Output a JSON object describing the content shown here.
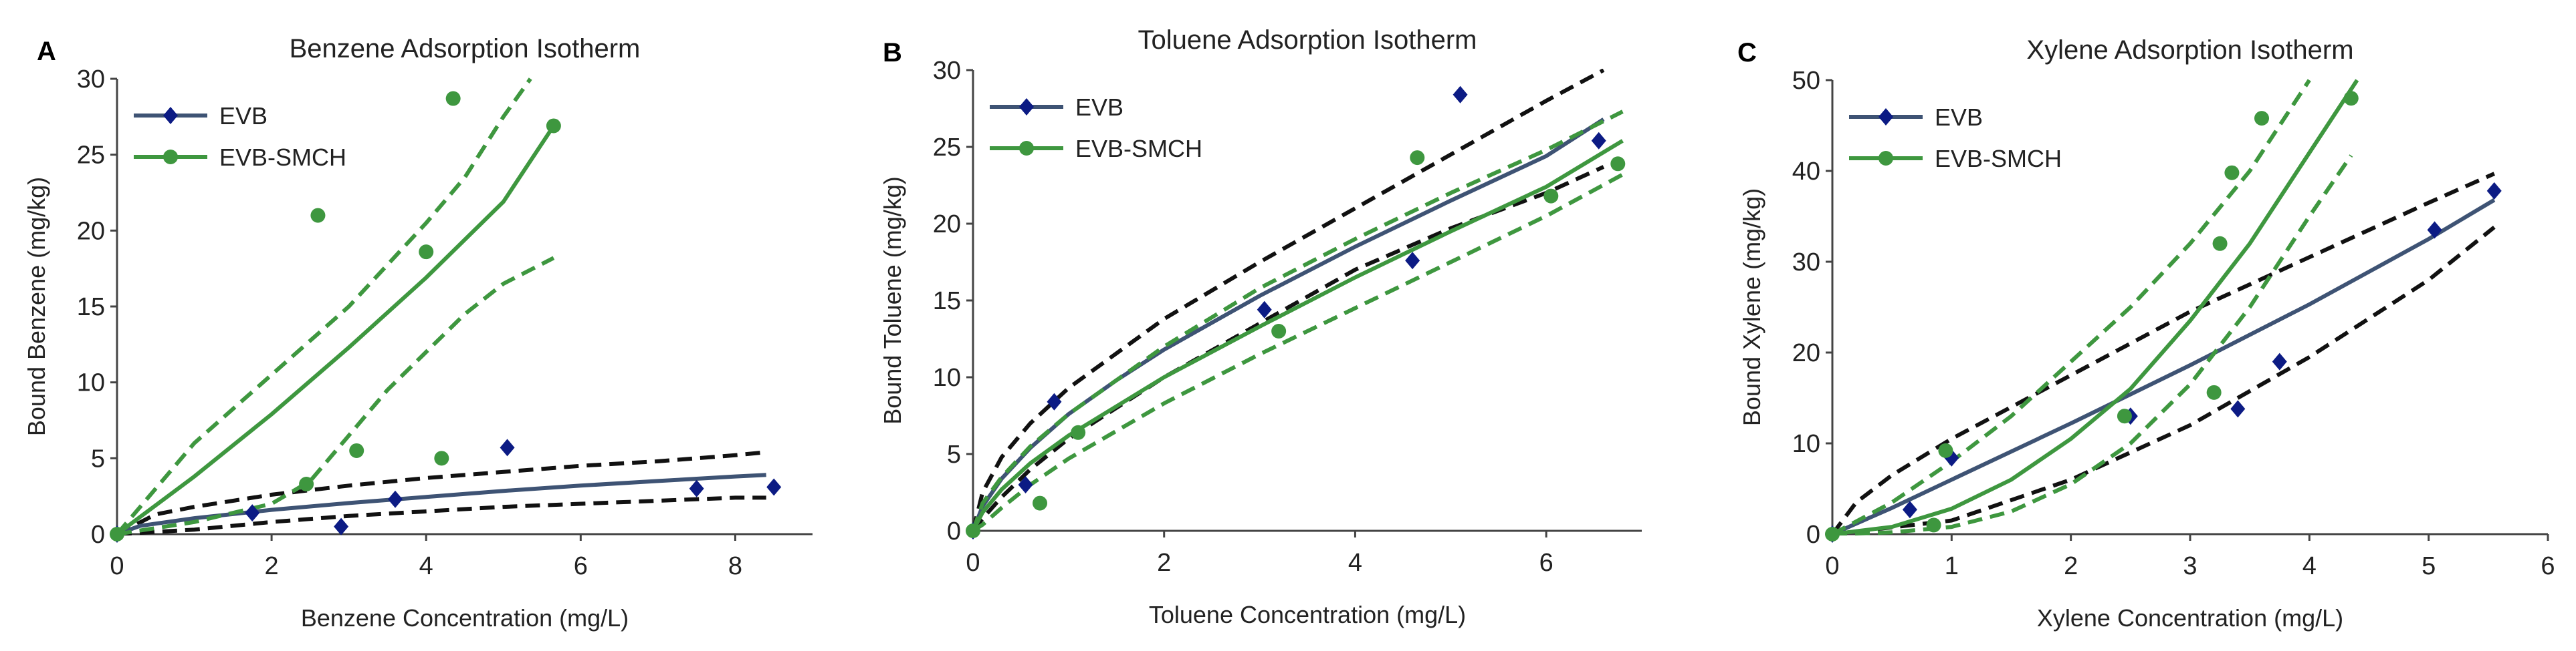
{
  "colors": {
    "evb_line": "#3e5374",
    "evb_marker": "#0c1b84",
    "smch": "#3e973f",
    "ci_black": "#111111"
  },
  "legend": {
    "evb": "EVB",
    "smch": "EVB-SMCH"
  },
  "chart_data": [
    {
      "type": "scatter",
      "panel_letter": "A",
      "title": "Benzene Adsorption Isotherm",
      "xlabel": "Benzene Concentration (mg/L)",
      "ylabel": "Bound Benzene (mg/kg)",
      "xlim": [
        0,
        9
      ],
      "ylim": [
        0,
        30
      ],
      "xticks": [
        0,
        2,
        4,
        6,
        8
      ],
      "yticks": [
        0,
        5,
        10,
        15,
        20,
        25,
        30
      ],
      "series": [
        {
          "name": "EVB",
          "points": [
            [
              0,
              0
            ],
            [
              1.75,
              1.4
            ],
            [
              2.9,
              0.5
            ],
            [
              3.6,
              2.3
            ],
            [
              5.05,
              5.7
            ],
            [
              7.5,
              3.0
            ],
            [
              8.5,
              3.1
            ]
          ],
          "fit": [
            [
              0,
              0
            ],
            [
              0.3,
              0.55
            ],
            [
              1,
              1.05
            ],
            [
              2,
              1.6
            ],
            [
              3,
              2.05
            ],
            [
              4,
              2.45
            ],
            [
              5,
              2.85
            ],
            [
              6,
              3.2
            ],
            [
              7,
              3.5
            ],
            [
              8,
              3.8
            ],
            [
              8.4,
              3.9
            ]
          ],
          "ci_upper": [
            [
              0,
              0
            ],
            [
              0.5,
              1.3
            ],
            [
              1,
              1.8
            ],
            [
              2,
              2.6
            ],
            [
              3,
              3.2
            ],
            [
              4,
              3.7
            ],
            [
              5,
              4.1
            ],
            [
              6,
              4.5
            ],
            [
              7,
              4.8
            ],
            [
              8,
              5.2
            ],
            [
              8.4,
              5.4
            ]
          ],
          "ci_lower": [
            [
              0,
              0
            ],
            [
              1,
              0.3
            ],
            [
              2,
              0.8
            ],
            [
              3,
              1.2
            ],
            [
              4,
              1.5
            ],
            [
              5,
              1.8
            ],
            [
              6,
              2.0
            ],
            [
              7,
              2.2
            ],
            [
              8,
              2.4
            ],
            [
              8.4,
              2.4
            ]
          ]
        },
        {
          "name": "EVB-SMCH",
          "points": [
            [
              0,
              0
            ],
            [
              2.45,
              3.3
            ],
            [
              2.6,
              21.0
            ],
            [
              3.1,
              5.5
            ],
            [
              4.0,
              18.6
            ],
            [
              4.2,
              5.0
            ],
            [
              4.35,
              28.7
            ],
            [
              5.65,
              26.9
            ]
          ],
          "fit": [
            [
              0,
              0
            ],
            [
              1,
              3.8
            ],
            [
              2,
              7.9
            ],
            [
              3,
              12.3
            ],
            [
              4,
              16.9
            ],
            [
              5,
              21.9
            ],
            [
              5.65,
              26.9
            ]
          ],
          "ci_upper": [
            [
              0,
              0
            ],
            [
              0.5,
              3.0
            ],
            [
              1,
              6.0
            ],
            [
              2,
              10.5
            ],
            [
              3,
              15.0
            ],
            [
              4,
              20.5
            ],
            [
              4.5,
              23.5
            ],
            [
              5,
              27.5
            ],
            [
              5.35,
              30.0
            ]
          ],
          "ci_lower": [
            [
              0,
              0
            ],
            [
              1,
              0.8
            ],
            [
              2,
              2.0
            ],
            [
              2.5,
              3.5
            ],
            [
              3,
              6.5
            ],
            [
              3.5,
              9.5
            ],
            [
              4,
              12.0
            ],
            [
              4.5,
              14.5
            ],
            [
              5,
              16.5
            ],
            [
              5.65,
              18.2
            ]
          ]
        }
      ]
    },
    {
      "type": "scatter",
      "panel_letter": "B",
      "title": "Toluene Adsorption Isotherm",
      "xlabel": "Toluene Concentration (mg/L)",
      "ylabel": "Bound Toluene (mg/kg)",
      "xlim": [
        0,
        7
      ],
      "ylim": [
        0,
        30
      ],
      "xticks": [
        0,
        2,
        4,
        6
      ],
      "yticks": [
        0,
        5,
        10,
        15,
        20,
        25,
        30
      ],
      "series": [
        {
          "name": "EVB",
          "points": [
            [
              0,
              0
            ],
            [
              0.55,
              3.0
            ],
            [
              0.85,
              8.4
            ],
            [
              3.05,
              14.4
            ],
            [
              4.6,
              17.6
            ],
            [
              5.1,
              28.4
            ],
            [
              6.55,
              25.4
            ]
          ],
          "fit": [
            [
              0,
              0
            ],
            [
              0.1,
              1.6
            ],
            [
              0.3,
              3.4
            ],
            [
              0.6,
              5.4
            ],
            [
              1,
              7.6
            ],
            [
              1.5,
              9.8
            ],
            [
              2,
              11.8
            ],
            [
              3,
              15.3
            ],
            [
              4,
              18.5
            ],
            [
              5,
              21.5
            ],
            [
              6,
              24.4
            ],
            [
              6.6,
              26.8
            ]
          ],
          "ci_upper": [
            [
              0,
              0
            ],
            [
              0.1,
              2.5
            ],
            [
              0.3,
              4.8
            ],
            [
              0.6,
              7.0
            ],
            [
              1,
              9.3
            ],
            [
              2,
              13.8
            ],
            [
              3,
              17.5
            ],
            [
              4,
              21.0
            ],
            [
              5,
              24.5
            ],
            [
              6,
              28.0
            ],
            [
              6.6,
              30.0
            ]
          ],
          "ci_lower": [
            [
              0,
              0
            ],
            [
              0.1,
              0.8
            ],
            [
              0.3,
              2.2
            ],
            [
              0.6,
              4.0
            ],
            [
              1,
              6.0
            ],
            [
              2,
              10.0
            ],
            [
              3,
              13.5
            ],
            [
              4,
              17.0
            ],
            [
              5,
              19.7
            ],
            [
              6,
              22.0
            ],
            [
              6.6,
              23.7
            ]
          ]
        },
        {
          "name": "EVB-SMCH",
          "points": [
            [
              0,
              0
            ],
            [
              0.7,
              1.8
            ],
            [
              1.1,
              6.4
            ],
            [
              3.2,
              13.0
            ],
            [
              4.65,
              24.3
            ],
            [
              6.05,
              21.8
            ],
            [
              6.75,
              23.9
            ]
          ],
          "fit": [
            [
              0,
              0
            ],
            [
              0.1,
              1.2
            ],
            [
              0.3,
              2.7
            ],
            [
              0.6,
              4.4
            ],
            [
              1,
              6.2
            ],
            [
              2,
              10.0
            ],
            [
              3,
              13.3
            ],
            [
              4,
              16.5
            ],
            [
              5,
              19.5
            ],
            [
              6,
              22.4
            ],
            [
              6.8,
              25.4
            ]
          ],
          "ci_upper": [
            [
              0,
              0
            ],
            [
              0.1,
              1.8
            ],
            [
              0.3,
              3.5
            ],
            [
              0.6,
              5.5
            ],
            [
              1,
              7.6
            ],
            [
              2,
              12.0
            ],
            [
              3,
              15.8
            ],
            [
              4,
              19.0
            ],
            [
              5,
              22.0
            ],
            [
              6,
              24.8
            ],
            [
              6.8,
              27.3
            ]
          ],
          "ci_lower": [
            [
              0,
              0
            ],
            [
              0.1,
              0.4
            ],
            [
              0.3,
              1.5
            ],
            [
              0.6,
              3.0
            ],
            [
              1,
              4.7
            ],
            [
              2,
              8.3
            ],
            [
              3,
              11.5
            ],
            [
              4,
              14.5
            ],
            [
              5,
              17.5
            ],
            [
              6,
              20.5
            ],
            [
              6.8,
              23.2
            ]
          ]
        }
      ]
    },
    {
      "type": "scatter",
      "panel_letter": "C",
      "title": "Xylene Adsorption Isotherm",
      "xlabel": "Xylene Concentration (mg/L)",
      "ylabel": "Bound Xylene (mg/kg)",
      "xlim": [
        0,
        6
      ],
      "ylim": [
        0,
        50
      ],
      "xticks": [
        0,
        1,
        2,
        3,
        4,
        5,
        6
      ],
      "yticks": [
        0,
        10,
        20,
        30,
        40,
        50
      ],
      "series": [
        {
          "name": "EVB",
          "points": [
            [
              0,
              0
            ],
            [
              0.65,
              2.7
            ],
            [
              1.0,
              8.4
            ],
            [
              2.5,
              13.0
            ],
            [
              3.4,
              13.8
            ],
            [
              3.75,
              19.0
            ],
            [
              5.05,
              33.5
            ],
            [
              5.55,
              37.8
            ]
          ],
          "fit": [
            [
              0,
              0
            ],
            [
              0.5,
              2.9
            ],
            [
              1,
              6.0
            ],
            [
              2,
              12.2
            ],
            [
              3,
              18.6
            ],
            [
              4,
              25.3
            ],
            [
              5,
              32.5
            ],
            [
              5.55,
              36.8
            ]
          ],
          "ci_upper": [
            [
              0,
              0
            ],
            [
              0.2,
              3.5
            ],
            [
              0.5,
              6.5
            ],
            [
              1,
              10.5
            ],
            [
              2,
              17.5
            ],
            [
              3,
              24.5
            ],
            [
              4,
              30.5
            ],
            [
              5,
              36.5
            ],
            [
              5.55,
              39.7
            ]
          ],
          "ci_lower": [
            [
              0,
              0
            ],
            [
              1,
              1.5
            ],
            [
              2,
              6.0
            ],
            [
              3,
              12.0
            ],
            [
              4,
              19.5
            ],
            [
              5,
              28.0
            ],
            [
              5.55,
              33.8
            ]
          ]
        },
        {
          "name": "EVB-SMCH",
          "points": [
            [
              0,
              0
            ],
            [
              0.85,
              1.0
            ],
            [
              0.95,
              9.2
            ],
            [
              2.45,
              13.0
            ],
            [
              3.2,
              15.6
            ],
            [
              3.25,
              32.0
            ],
            [
              3.35,
              39.8
            ],
            [
              3.6,
              45.8
            ],
            [
              4.35,
              48.0
            ]
          ],
          "fit": [
            [
              0,
              0
            ],
            [
              0.5,
              0.8
            ],
            [
              1,
              2.8
            ],
            [
              1.5,
              6.0
            ],
            [
              2,
              10.5
            ],
            [
              2.5,
              16.0
            ],
            [
              3,
              23.5
            ],
            [
              3.5,
              32.0
            ],
            [
              4,
              42.0
            ],
            [
              4.4,
              50.0
            ]
          ],
          "ci_upper": [
            [
              0,
              0
            ],
            [
              0.5,
              3.5
            ],
            [
              1,
              8.0
            ],
            [
              1.5,
              13.0
            ],
            [
              2,
              19.0
            ],
            [
              2.5,
              25.0
            ],
            [
              3,
              32.0
            ],
            [
              3.5,
              40.0
            ],
            [
              4,
              50.0
            ]
          ],
          "ci_lower": [
            [
              0,
              0
            ],
            [
              0.5,
              0.2
            ],
            [
              1,
              0.8
            ],
            [
              1.5,
              2.5
            ],
            [
              2,
              5.5
            ],
            [
              2.5,
              10.0
            ],
            [
              3,
              16.5
            ],
            [
              3.5,
              25.0
            ],
            [
              4,
              35.0
            ],
            [
              4.35,
              41.7
            ]
          ]
        }
      ]
    }
  ]
}
